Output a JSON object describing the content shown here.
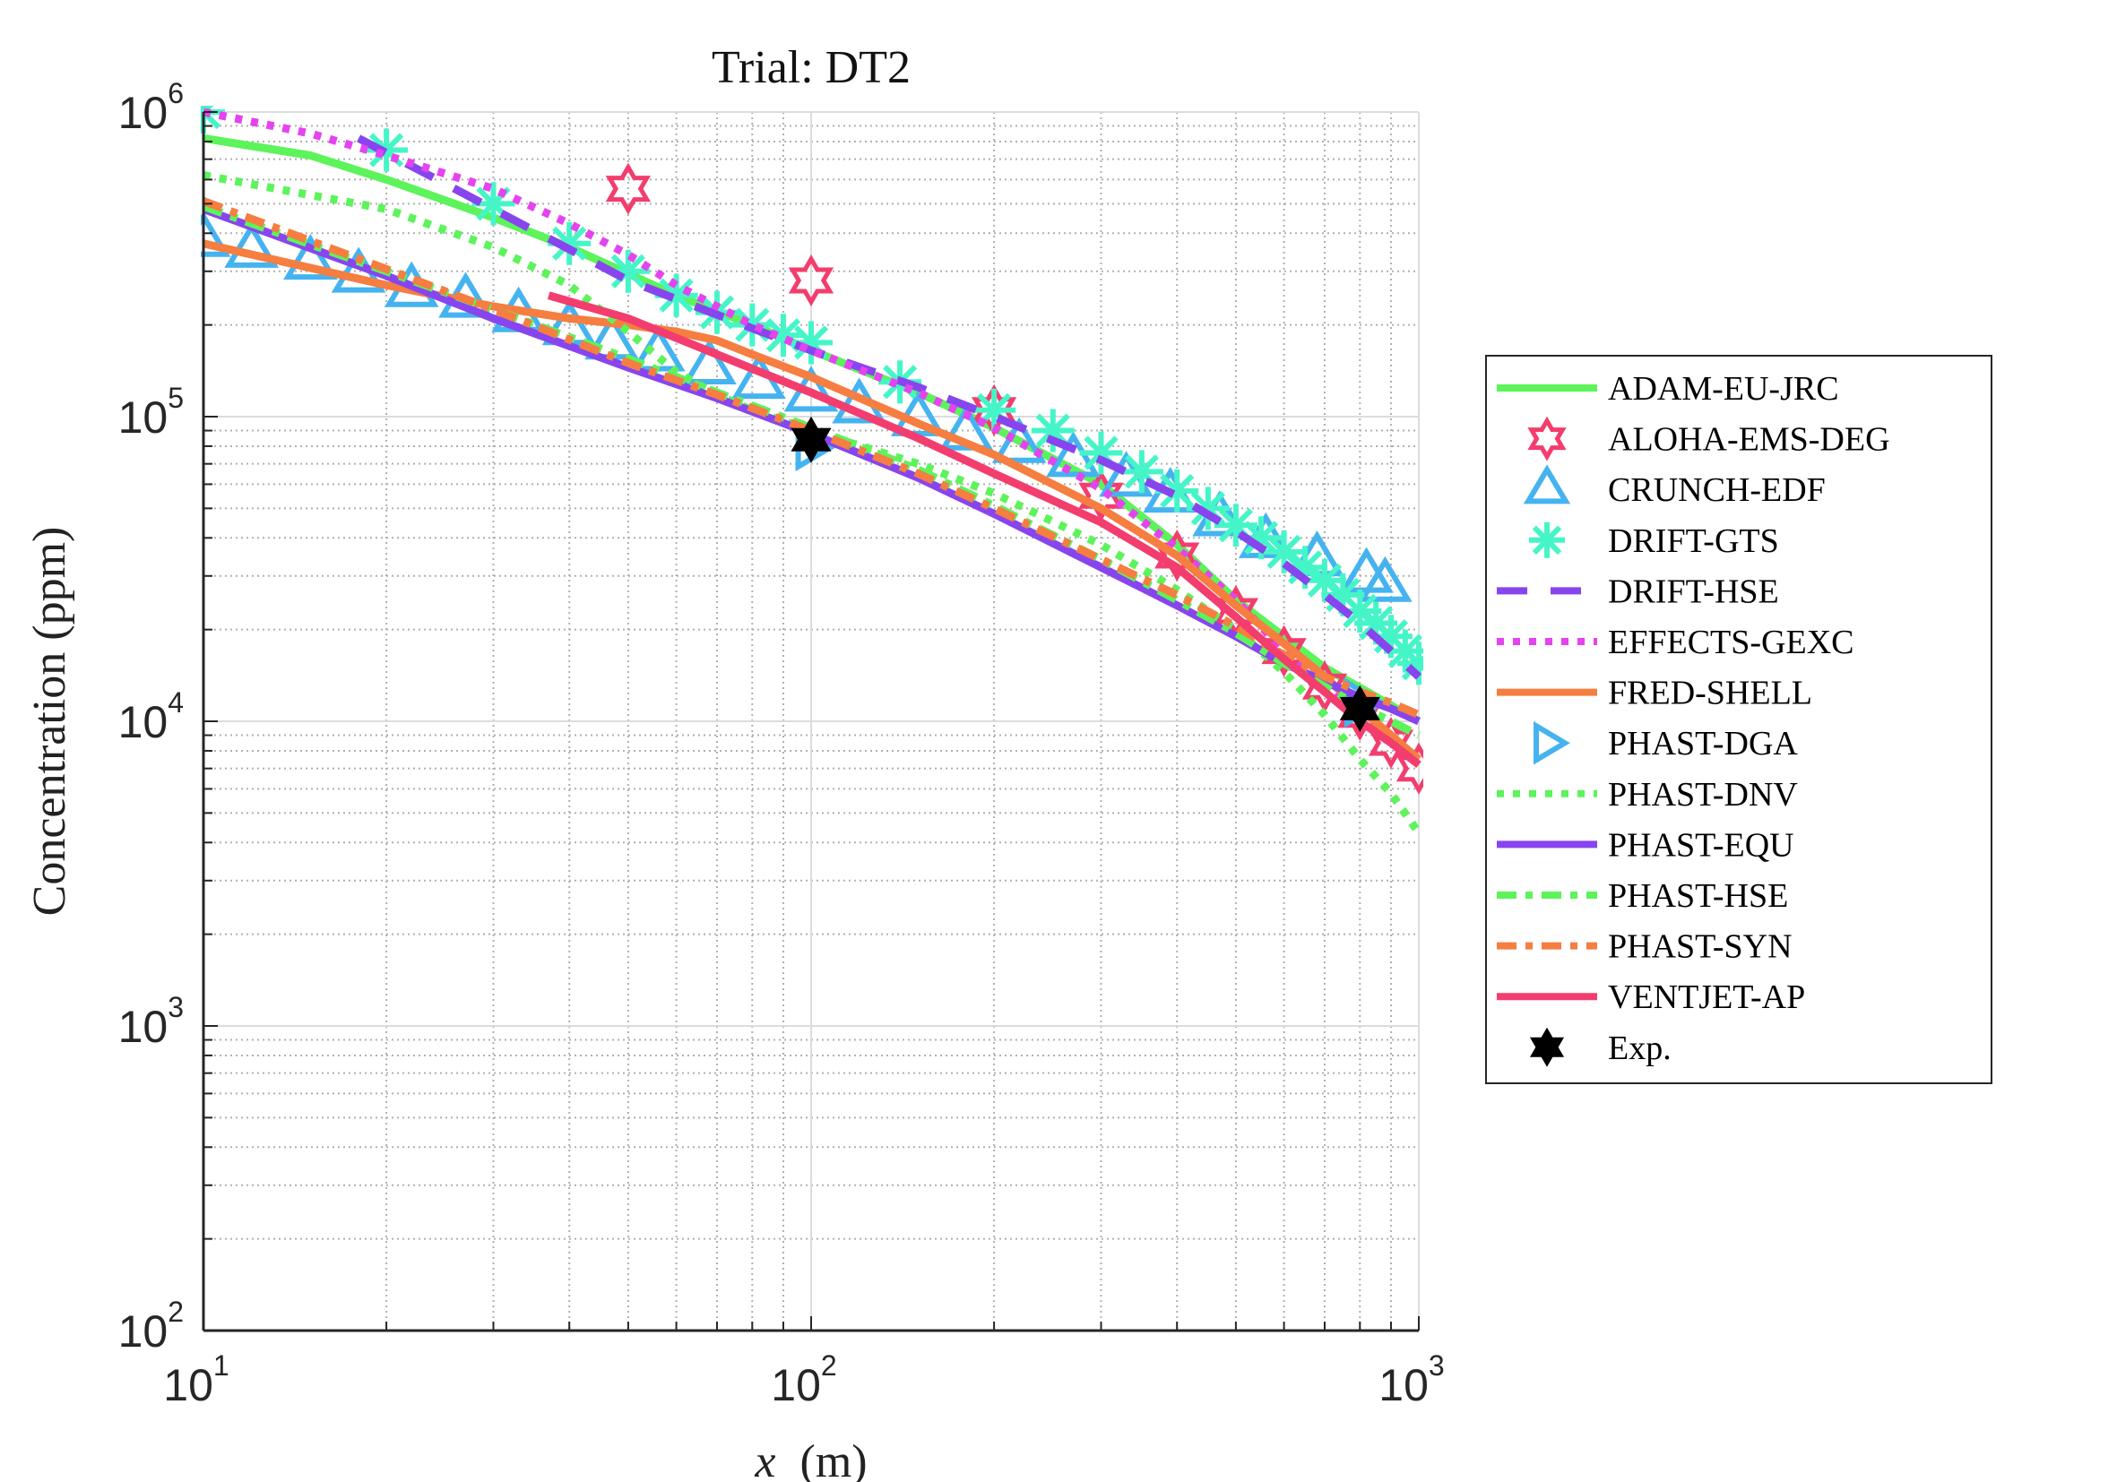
{
  "chart_data": {
    "type": "line",
    "title": "Trial: DT2",
    "xlabel_var": "x",
    "xlabel_unit": "(m)",
    "ylabel": "Concentration (ppm)",
    "xscale": "log",
    "yscale": "log",
    "xlim": [
      10,
      1000
    ],
    "ylim": [
      100,
      1000000
    ],
    "x_ticks": [
      {
        "base": "10",
        "exp": "1",
        "value": 10
      },
      {
        "base": "10",
        "exp": "2",
        "value": 100
      },
      {
        "base": "10",
        "exp": "3",
        "value": 1000
      }
    ],
    "y_ticks": [
      {
        "base": "10",
        "exp": "2",
        "value": 100
      },
      {
        "base": "10",
        "exp": "3",
        "value": 1000
      },
      {
        "base": "10",
        "exp": "4",
        "value": 10000
      },
      {
        "base": "10",
        "exp": "5",
        "value": 100000
      },
      {
        "base": "10",
        "exp": "6",
        "value": 1000000
      }
    ],
    "grid": true,
    "minor_grid": true,
    "legend_position": "outside-right",
    "series": [
      {
        "name": "ADAM-EU-JRC",
        "color": "#5df35b",
        "style": "solid",
        "marker": "none",
        "x": [
          10,
          15,
          20,
          30,
          40,
          60,
          80,
          100,
          150,
          200,
          300,
          400,
          500,
          700,
          1000
        ],
        "y": [
          820000,
          720000,
          600000,
          450000,
          360000,
          250000,
          200000,
          165000,
          120000,
          92000,
          60000,
          38000,
          25000,
          15000,
          10000
        ]
      },
      {
        "name": "ALOHA-EMS-DEG",
        "color": "#f33d6e",
        "style": "none",
        "marker": "hexagram-open",
        "x": [
          50,
          100,
          200,
          300,
          400,
          500,
          600,
          700,
          800,
          900,
          1000
        ],
        "y": [
          560000,
          280000,
          105000,
          55000,
          35000,
          23000,
          17000,
          13000,
          10500,
          8500,
          7000
        ]
      },
      {
        "name": "CRUNCH-EDF",
        "color": "#45b3f0",
        "style": "none",
        "marker": "triangle-up-open",
        "x": [
          10,
          12,
          15,
          18,
          22,
          27,
          33,
          40,
          47,
          56,
          68,
          82,
          100,
          120,
          150,
          180,
          220,
          270,
          330,
          390,
          470,
          560,
          680,
          820,
          880
        ],
        "y": [
          380000,
          350000,
          320000,
          290000,
          260000,
          240000,
          215000,
          195000,
          175000,
          160000,
          145000,
          130000,
          118000,
          108000,
          98000,
          88000,
          80000,
          72000,
          62000,
          55000,
          46000,
          39000,
          34000,
          30000,
          28000
        ]
      },
      {
        "name": "DRIFT-GTS",
        "color": "#45f5c8",
        "style": "none",
        "marker": "asterisk",
        "x": [
          10,
          20,
          30,
          40,
          50,
          60,
          70,
          80,
          90,
          100,
          140,
          200,
          250,
          300,
          350,
          400,
          450,
          500,
          550,
          600,
          650,
          700,
          750,
          800,
          850,
          900,
          950,
          1000
        ],
        "y": [
          1000000,
          750000,
          500000,
          370000,
          300000,
          250000,
          220000,
          200000,
          185000,
          175000,
          130000,
          105000,
          90000,
          76000,
          66000,
          57000,
          50000,
          44000,
          40000,
          36000,
          32000,
          29000,
          26000,
          23000,
          21000,
          19000,
          17000,
          15500
        ]
      },
      {
        "name": "DRIFT-HSE",
        "color": "#8845ee",
        "style": "dash",
        "marker": "none",
        "x": [
          18,
          30,
          50,
          80,
          100,
          150,
          200,
          300,
          400,
          500,
          600,
          700,
          800,
          900,
          1000
        ],
        "y": [
          820000,
          480000,
          280000,
          195000,
          165000,
          125000,
          100000,
          72000,
          55000,
          42000,
          33000,
          26000,
          21000,
          17000,
          14000
        ]
      },
      {
        "name": "EFFECTS-GEXC",
        "color": "#e543f0",
        "style": "dot",
        "marker": "none",
        "x": [
          10,
          15,
          20,
          30,
          40,
          50,
          60,
          80,
          100,
          150,
          200,
          300,
          400,
          500,
          600,
          700,
          800,
          900,
          1000
        ],
        "y": [
          1000000,
          850000,
          720000,
          560000,
          430000,
          340000,
          270000,
          200000,
          165000,
          120000,
          92000,
          58000,
          37000,
          25000,
          17000,
          13000,
          10000,
          8500,
          7200
        ]
      },
      {
        "name": "FRED-SHELL",
        "color": "#f57e40",
        "style": "solid",
        "marker": "none",
        "x": [
          10,
          20,
          30,
          40,
          50,
          60,
          70,
          80,
          100,
          150,
          200,
          300,
          400,
          500,
          600,
          700,
          800,
          900,
          1000
        ],
        "y": [
          370000,
          270000,
          230000,
          210000,
          200000,
          190000,
          178000,
          160000,
          135000,
          95000,
          75000,
          50000,
          35000,
          24000,
          18000,
          14000,
          11000,
          9000,
          7500
        ]
      },
      {
        "name": "PHAST-DGA",
        "color": "#45b3f0",
        "style": "none",
        "marker": "triangle-right-open",
        "x": [
          100,
          800
        ],
        "y": [
          80000,
          11500
        ]
      },
      {
        "name": "PHAST-DNV",
        "color": "#5df35b",
        "style": "dot",
        "marker": "none",
        "x": [
          10,
          20,
          30,
          40,
          50,
          60,
          70,
          80,
          100,
          150,
          200,
          300,
          400,
          500,
          600,
          700,
          800,
          900,
          1000
        ],
        "y": [
          620000,
          480000,
          360000,
          270000,
          190000,
          140000,
          118000,
          105000,
          90000,
          70000,
          56000,
          38000,
          27000,
          20000,
          14500,
          10500,
          7500,
          5800,
          4300
        ]
      },
      {
        "name": "PHAST-EQU",
        "color": "#8845ee",
        "style": "solid",
        "marker": "none",
        "x": [
          10,
          20,
          30,
          50,
          70,
          100,
          150,
          200,
          300,
          400,
          500,
          600,
          700,
          800,
          900,
          1000
        ],
        "y": [
          480000,
          290000,
          210000,
          145000,
          115000,
          88000,
          63000,
          48000,
          32000,
          24000,
          19000,
          15500,
          13500,
          12000,
          11000,
          10000
        ]
      },
      {
        "name": "PHAST-HSE",
        "color": "#5df35b",
        "style": "dashdot",
        "marker": "none",
        "x": [
          10,
          20,
          30,
          50,
          70,
          100,
          150,
          200,
          300,
          400,
          500,
          600,
          700,
          800,
          900,
          1000
        ],
        "y": [
          490000,
          300000,
          225000,
          155000,
          120000,
          92000,
          67000,
          51000,
          34000,
          25000,
          19500,
          15500,
          13000,
          11200,
          10000,
          9000
        ]
      },
      {
        "name": "PHAST-SYN",
        "color": "#f57e40",
        "style": "dashdot",
        "marker": "none",
        "x": [
          10,
          20,
          30,
          50,
          70,
          100,
          150,
          200,
          300,
          400,
          500,
          600,
          700,
          800,
          900,
          1000
        ],
        "y": [
          510000,
          305000,
          225000,
          150000,
          118000,
          90000,
          65000,
          50000,
          34000,
          26000,
          20500,
          16500,
          14000,
          12500,
          11500,
          10500
        ]
      },
      {
        "name": "VENTJET-AP",
        "color": "#f33d6e",
        "style": "solid",
        "marker": "none",
        "x": [
          37,
          50,
          70,
          100,
          150,
          200,
          300,
          400,
          500,
          600,
          700,
          800,
          900,
          1000
        ],
        "y": [
          250000,
          210000,
          160000,
          120000,
          85000,
          65000,
          45000,
          32000,
          22000,
          16000,
          12500,
          10000,
          8500,
          7200
        ]
      },
      {
        "name": "Exp.",
        "color": "#000000",
        "style": "none",
        "marker": "hexagram-filled",
        "x": [
          100,
          800
        ],
        "y": [
          84000,
          11000
        ]
      }
    ]
  }
}
